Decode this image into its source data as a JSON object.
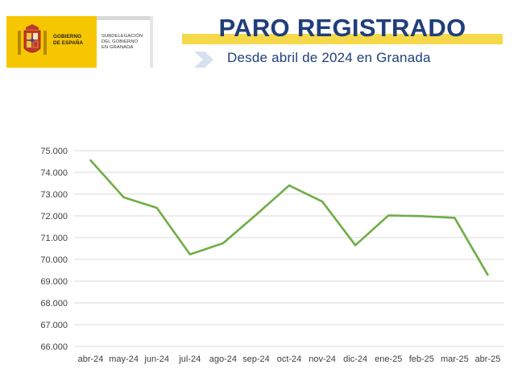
{
  "header": {
    "gov_line1": "GOBIERNO",
    "gov_line2": "DE ESPAÑA",
    "sub_line1": "SUBDELEGACIÓN",
    "sub_line2": "DEL GOBIERNO",
    "sub_line3": "EN GRANADA",
    "title": "PARO REGISTRADO",
    "subtitle": "Desde abril de 2024 en Granada"
  },
  "colors": {
    "title": "#1f3f7a",
    "title_highlight": "#f6d94a",
    "logo_yellow": "#f6c700",
    "line": "#70ad47",
    "grid": "#d9d9d9"
  },
  "chart_data": {
    "type": "line",
    "title": "",
    "xlabel": "",
    "ylabel": "",
    "categories": [
      "abr-24",
      "may-24",
      "jun-24",
      "jul-24",
      "ago-24",
      "sep-24",
      "oct-24",
      "nov-24",
      "dic-24",
      "ene-25",
      "feb-25",
      "mar-25",
      "abr-25"
    ],
    "series": [
      {
        "values": [
          74550,
          72850,
          72370,
          70230,
          70740,
          72050,
          73400,
          72660,
          70650,
          72020,
          71990,
          71910,
          69290
        ]
      }
    ],
    "ylim": [
      66000,
      75000
    ],
    "yticks": [
      "66.000",
      "67.000",
      "68.000",
      "69.000",
      "70.000",
      "71.000",
      "72.000",
      "73.000",
      "74.000",
      "75.000"
    ],
    "grid": true,
    "legend": "none"
  }
}
